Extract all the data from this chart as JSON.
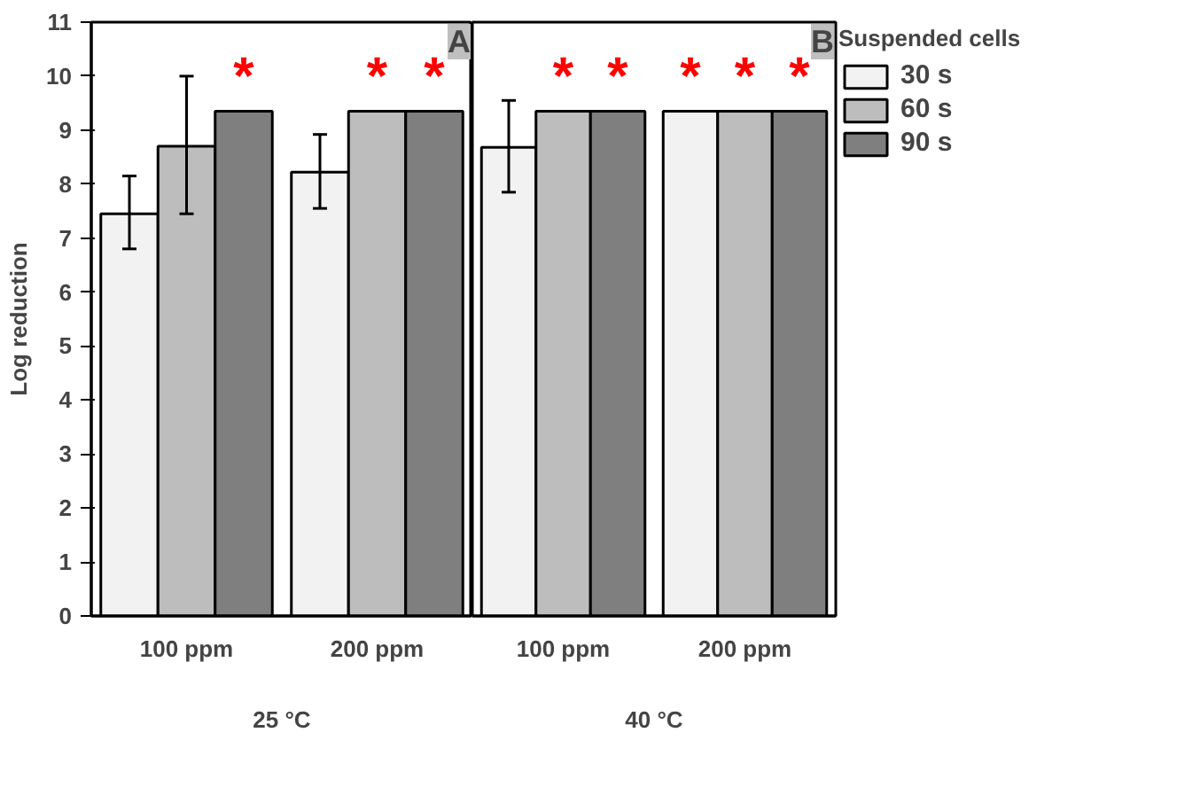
{
  "chart_data": [
    {
      "type": "bar",
      "title": "A",
      "xlabel": "25 °C",
      "ylabel": "Log reduction",
      "categories": [
        "100 ppm",
        "200 ppm"
      ],
      "ylim": [
        0,
        11
      ],
      "yticks": [
        0,
        1,
        2,
        3,
        4,
        5,
        6,
        7,
        8,
        9,
        10,
        11
      ],
      "grid": false,
      "series": [
        {
          "color": "#f2f2f2",
          "values": [
            7.45,
            8.22
          ],
          "errors": [
            [
              6.8,
              8.15
            ],
            [
              7.55,
              8.92
            ]
          ]
        },
        {
          "color": "#bdbdbd",
          "values": [
            8.7,
            9.35
          ],
          "errors": [
            [
              7.45,
              10.0
            ],
            null
          ],
          "value_labels": [
            null,
            "*"
          ]
        },
        {
          "color": "#7f7f7f",
          "values": [
            9.35,
            9.35
          ],
          "value_labels": [
            "*",
            "*"
          ]
        }
      ]
    },
    {
      "type": "bar",
      "title": "B",
      "xlabel": "40 °C",
      "categories": [
        "100 ppm",
        "200 ppm"
      ],
      "ylim": [
        0,
        11
      ],
      "yticks": [
        0,
        1,
        2,
        3,
        4,
        5,
        6,
        7,
        8,
        9,
        10,
        11
      ],
      "tick_labels": "x",
      "grid": false,
      "legend": "right",
      "legend_title": "Suspended cells",
      "series": [
        {
          "name": "30 s",
          "color": "#f2f2f2",
          "values": [
            8.68,
            9.35
          ],
          "errors": [
            [
              7.85,
              9.55
            ],
            null
          ],
          "value_labels": [
            null,
            "*"
          ]
        },
        {
          "name": "60 s",
          "color": "#bdbdbd",
          "values": [
            9.35,
            9.35
          ],
          "value_labels": [
            "*",
            "*"
          ]
        },
        {
          "name": "90 s",
          "color": "#7f7f7f",
          "values": [
            9.35,
            9.35
          ],
          "value_labels": [
            "*",
            "*"
          ]
        }
      ]
    }
  ]
}
